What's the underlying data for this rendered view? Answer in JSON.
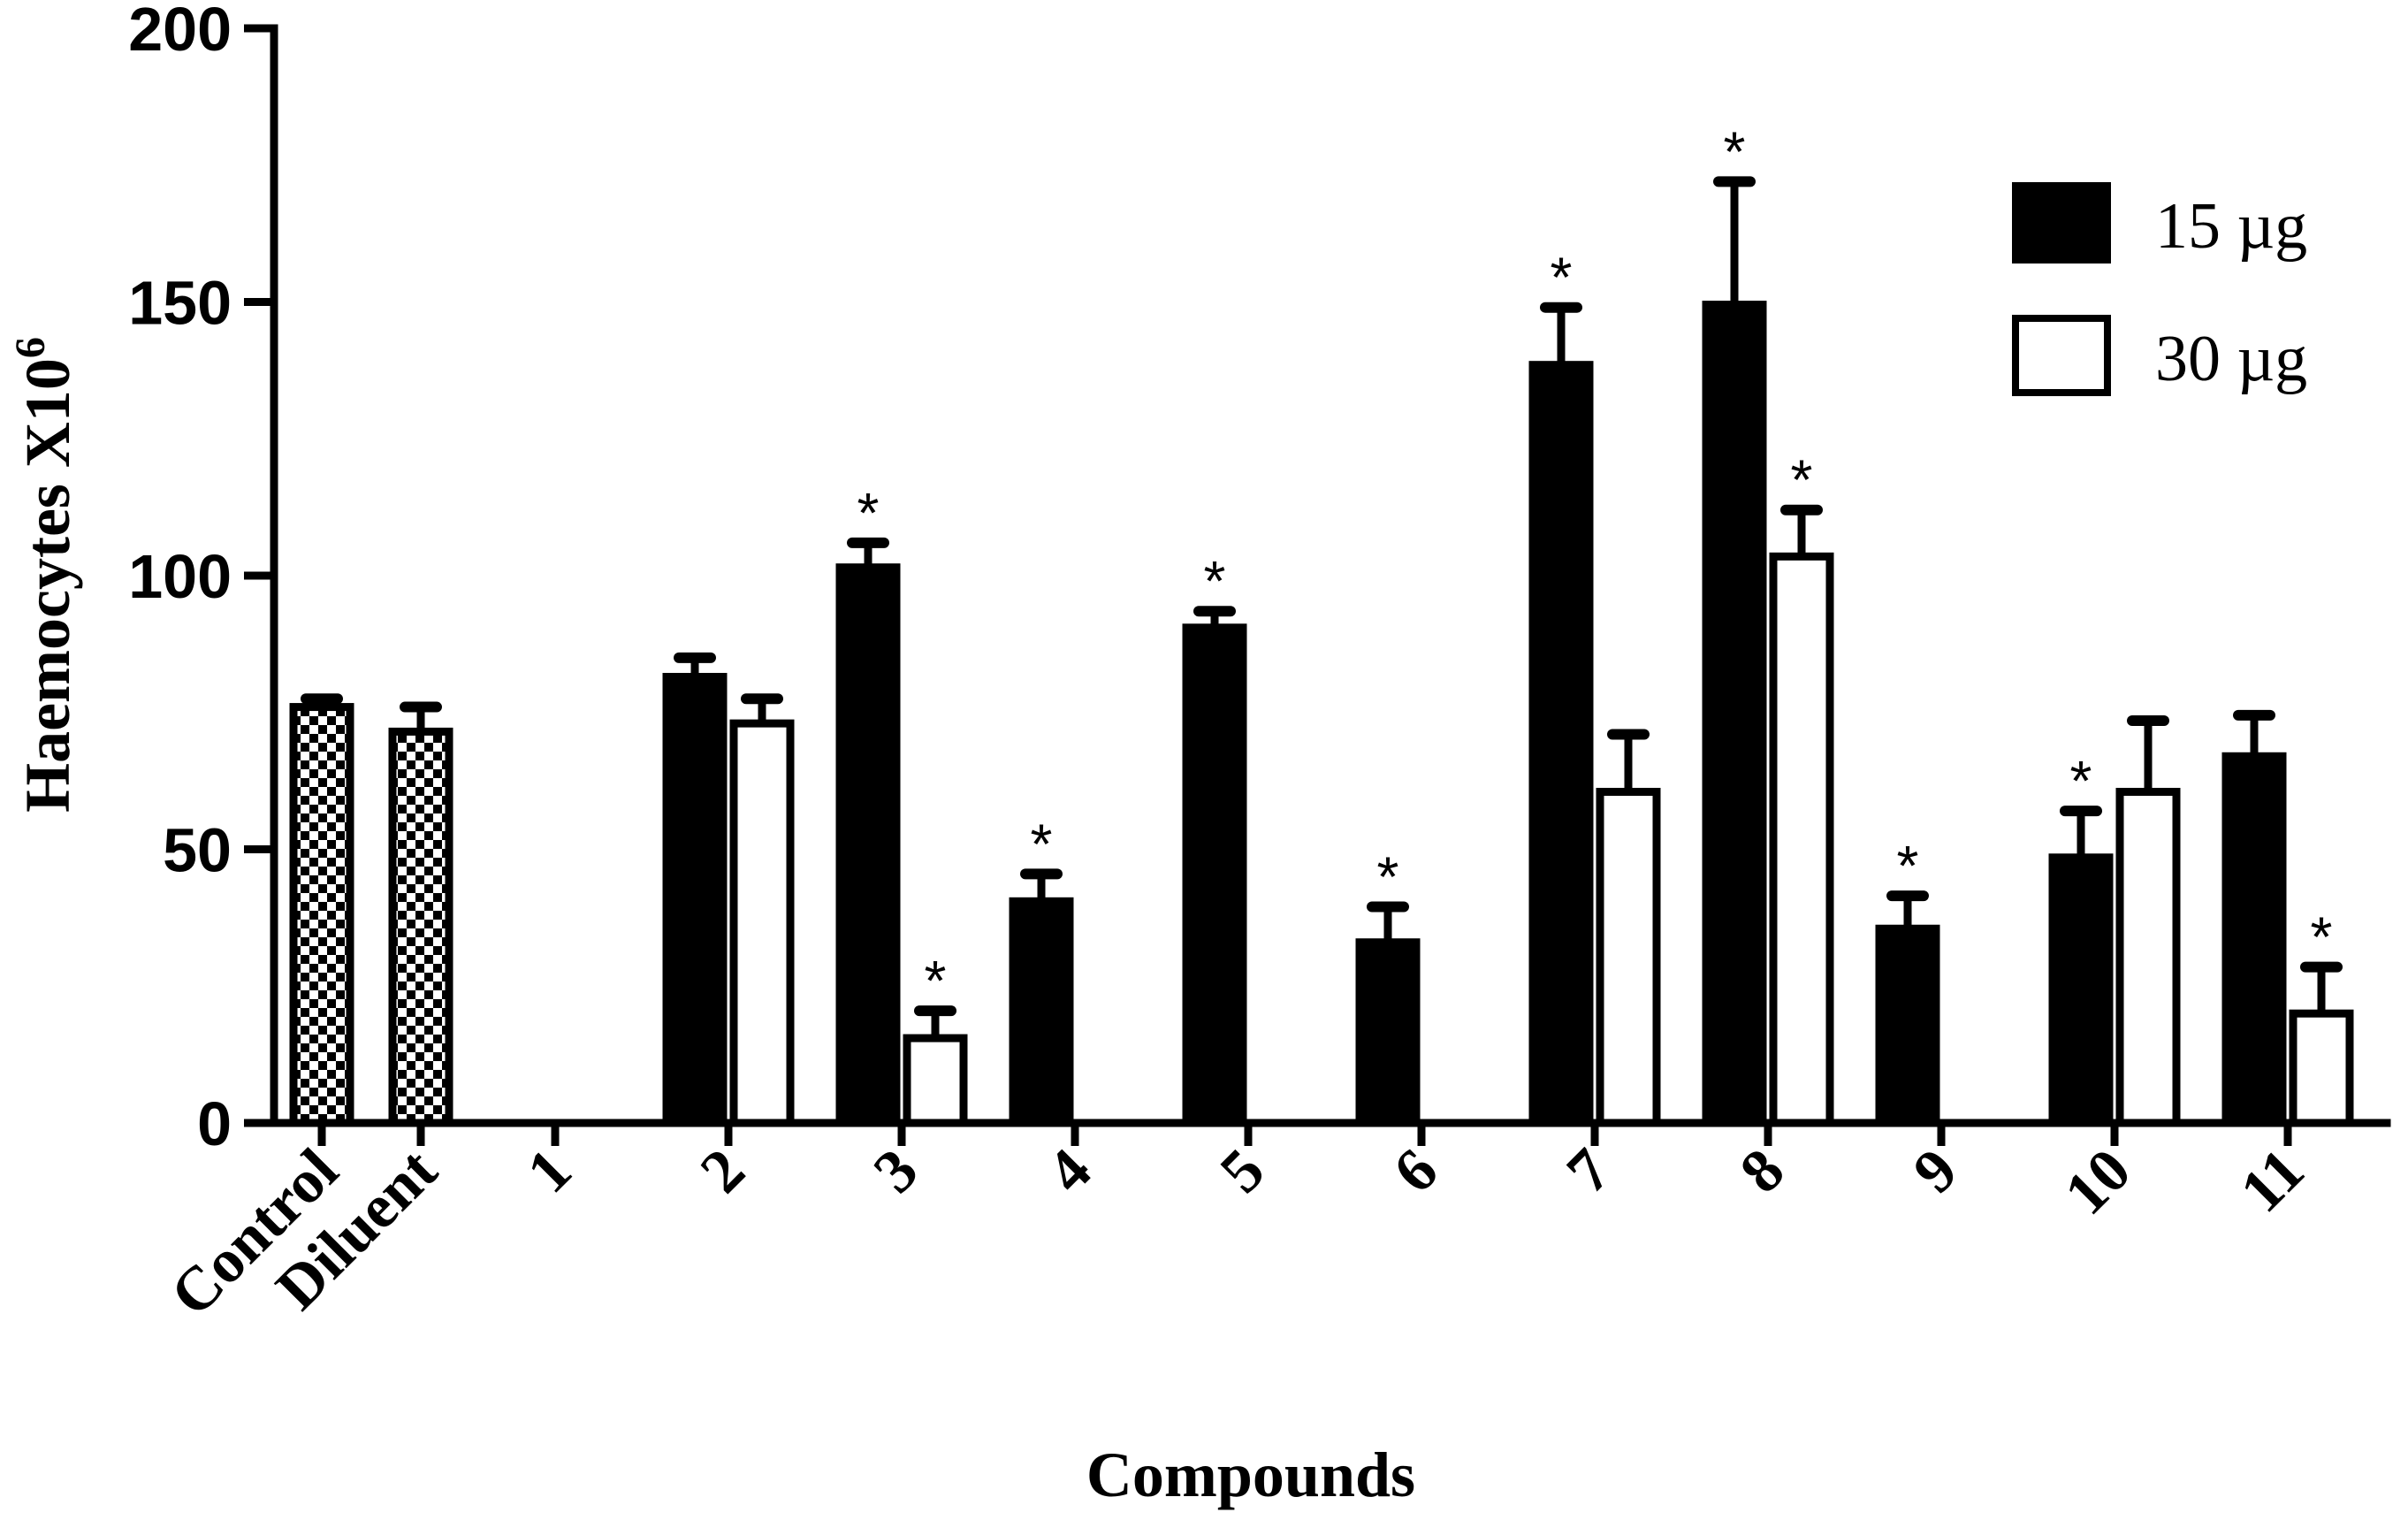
{
  "chart_data": {
    "type": "bar",
    "xlabel": "Compounds",
    "ylabel": "Haemocytes X10",
    "ylabel_superscript": "6",
    "ylim": [
      0,
      200
    ],
    "yticks": [
      "0",
      "50",
      "100",
      "150",
      "200"
    ],
    "categories": [
      "Control",
      "Diluent",
      "1",
      "2",
      "3",
      "4",
      "5",
      "6",
      "7",
      "8",
      "9",
      "10",
      "11"
    ],
    "legend_position": "top-right",
    "colors": {
      "dark_fill": "#000000",
      "light_fill": "#ffffff",
      "checker_dark": "#000000",
      "checker_light": "#ffffff"
    },
    "baseline": [
      {
        "category": "Control",
        "value": 76,
        "err": 1.5,
        "style": "checkered"
      },
      {
        "category": "Diluent",
        "value": 71.5,
        "err": 4.5,
        "style": "checkered"
      }
    ],
    "series": [
      {
        "name": "15 µg",
        "style": "solid-black",
        "values": [
          null,
          null,
          0,
          81.5,
          101.5,
          40.5,
          90.5,
          33,
          138.5,
          149.5,
          35.5,
          48.5,
          67
        ],
        "errors": [
          null,
          null,
          0,
          3.5,
          4.5,
          5,
          3,
          6.5,
          10.5,
          22.5,
          6,
          8.5,
          7.5
        ],
        "significant": [
          false,
          false,
          false,
          false,
          true,
          true,
          true,
          true,
          true,
          true,
          true,
          true,
          false
        ]
      },
      {
        "name": "30 µg",
        "style": "white",
        "values": [
          null,
          null,
          0,
          73,
          15.5,
          0,
          0,
          0,
          60.5,
          103.5,
          0,
          60.5,
          20
        ],
        "errors": [
          null,
          null,
          0,
          4.5,
          5,
          0,
          0,
          0,
          10.5,
          8.5,
          0,
          13,
          8.5
        ],
        "significant": [
          false,
          false,
          false,
          false,
          true,
          false,
          false,
          false,
          false,
          true,
          false,
          false,
          true
        ]
      }
    ],
    "significance_marker": "*"
  }
}
